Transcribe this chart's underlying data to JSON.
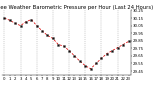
{
  "title": "Milwaukee Weather Barometric Pressure per Hour (Last 24 Hours)",
  "hours": [
    0,
    1,
    2,
    3,
    4,
    5,
    6,
    7,
    8,
    9,
    10,
    11,
    12,
    13,
    14,
    15,
    16,
    17,
    18,
    19,
    20,
    21,
    22,
    23
  ],
  "pressure": [
    30.15,
    30.12,
    30.08,
    30.05,
    30.1,
    30.13,
    30.05,
    29.98,
    29.92,
    29.88,
    29.8,
    29.78,
    29.72,
    29.65,
    29.58,
    29.52,
    29.48,
    29.55,
    29.62,
    29.68,
    29.72,
    29.76,
    29.8,
    29.84
  ],
  "ylim": [
    29.4,
    30.25
  ],
  "ytick_vals": [
    29.45,
    29.55,
    29.65,
    29.75,
    29.85,
    29.95,
    30.05,
    30.15,
    30.25
  ],
  "ytick_labels": [
    "29.45",
    "29.55",
    "29.65",
    "29.75",
    "29.85",
    "29.95",
    "30.05",
    "30.15",
    "30.25"
  ],
  "line_color": "#dd0000",
  "marker_color": "#111111",
  "grid_color": "#999999",
  "bg_color": "#ffffff",
  "title_fontsize": 3.8,
  "tick_fontsize": 2.8,
  "line_width": 0.55,
  "marker_size": 1.8,
  "grid_every": 3
}
